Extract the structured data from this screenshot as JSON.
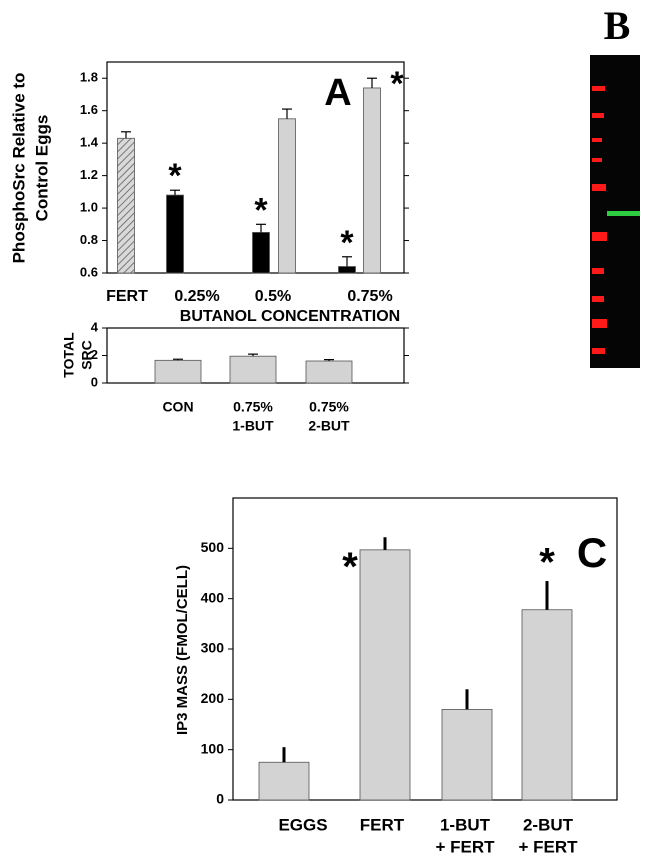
{
  "chart_data": [
    {
      "type": "bar",
      "panel_label": "A",
      "ylabel": [
        "PhosphoSrc Relative to",
        "Control Eggs"
      ],
      "xlabel": "BUTANOL CONCENTRATION",
      "categories": [
        [
          "FERT"
        ],
        [
          "0.25%"
        ],
        [
          "0.5%"
        ],
        [
          "0.75%"
        ]
      ],
      "ylim": [
        0.6,
        1.9
      ],
      "yticks": [
        0.6,
        0.8,
        {
          "value": 1,
          "label": "1.0"
        },
        1.2,
        1.4,
        1.6,
        1.8
      ],
      "series": [
        {
          "color": "#bdbdbd",
          "hatch": true,
          "values": [
            1.43,
            null,
            null,
            null
          ],
          "errors": [
            0.04,
            null,
            null,
            null
          ]
        },
        {
          "color": "#000000",
          "values": [
            null,
            1.08,
            0.85,
            0.64
          ],
          "errors": [
            null,
            0.03,
            0.05,
            0.06
          ],
          "significance": [
            null,
            "*",
            "*",
            "*"
          ]
        },
        {
          "color": "#d3d3d3",
          "values": [
            null,
            null,
            1.55,
            1.74
          ],
          "errors": [
            null,
            null,
            0.06,
            0.06
          ],
          "significance": [
            null,
            null,
            null,
            "*"
          ]
        }
      ]
    },
    {
      "type": "bar",
      "ylabel": [
        "TOTAL",
        "SRC"
      ],
      "categories": [
        [
          "CON"
        ],
        [
          "0.75%",
          "1-BUT"
        ],
        [
          "0.75%",
          "2-BUT"
        ]
      ],
      "ylim": [
        0,
        4
      ],
      "yticks": [
        0,
        2,
        4
      ],
      "series": [
        {
          "color": "#d3d3d3",
          "values": [
            1.65,
            1.95,
            1.6
          ],
          "errors": [
            0.08,
            0.15,
            0.1
          ]
        }
      ]
    },
    {
      "type": "bar",
      "panel_label": "C",
      "ylabel": [
        "IP3 MASS (FMOL/CELL)"
      ],
      "categories": [
        [
          "EGGS"
        ],
        [
          "FERT"
        ],
        [
          "1-BUT",
          "+ FERT"
        ],
        [
          "2-BUT",
          "+ FERT"
        ]
      ],
      "ylim": [
        0,
        600
      ],
      "yticks": [
        0,
        100,
        200,
        300,
        400,
        500
      ],
      "series": [
        {
          "color": "#d3d3d3",
          "values": [
            75,
            497,
            180,
            378
          ],
          "errors": [
            30,
            25,
            40,
            57
          ],
          "significance": [
            null,
            "*",
            null,
            "*"
          ]
        }
      ]
    }
  ],
  "blot": {
    "label": "B"
  }
}
